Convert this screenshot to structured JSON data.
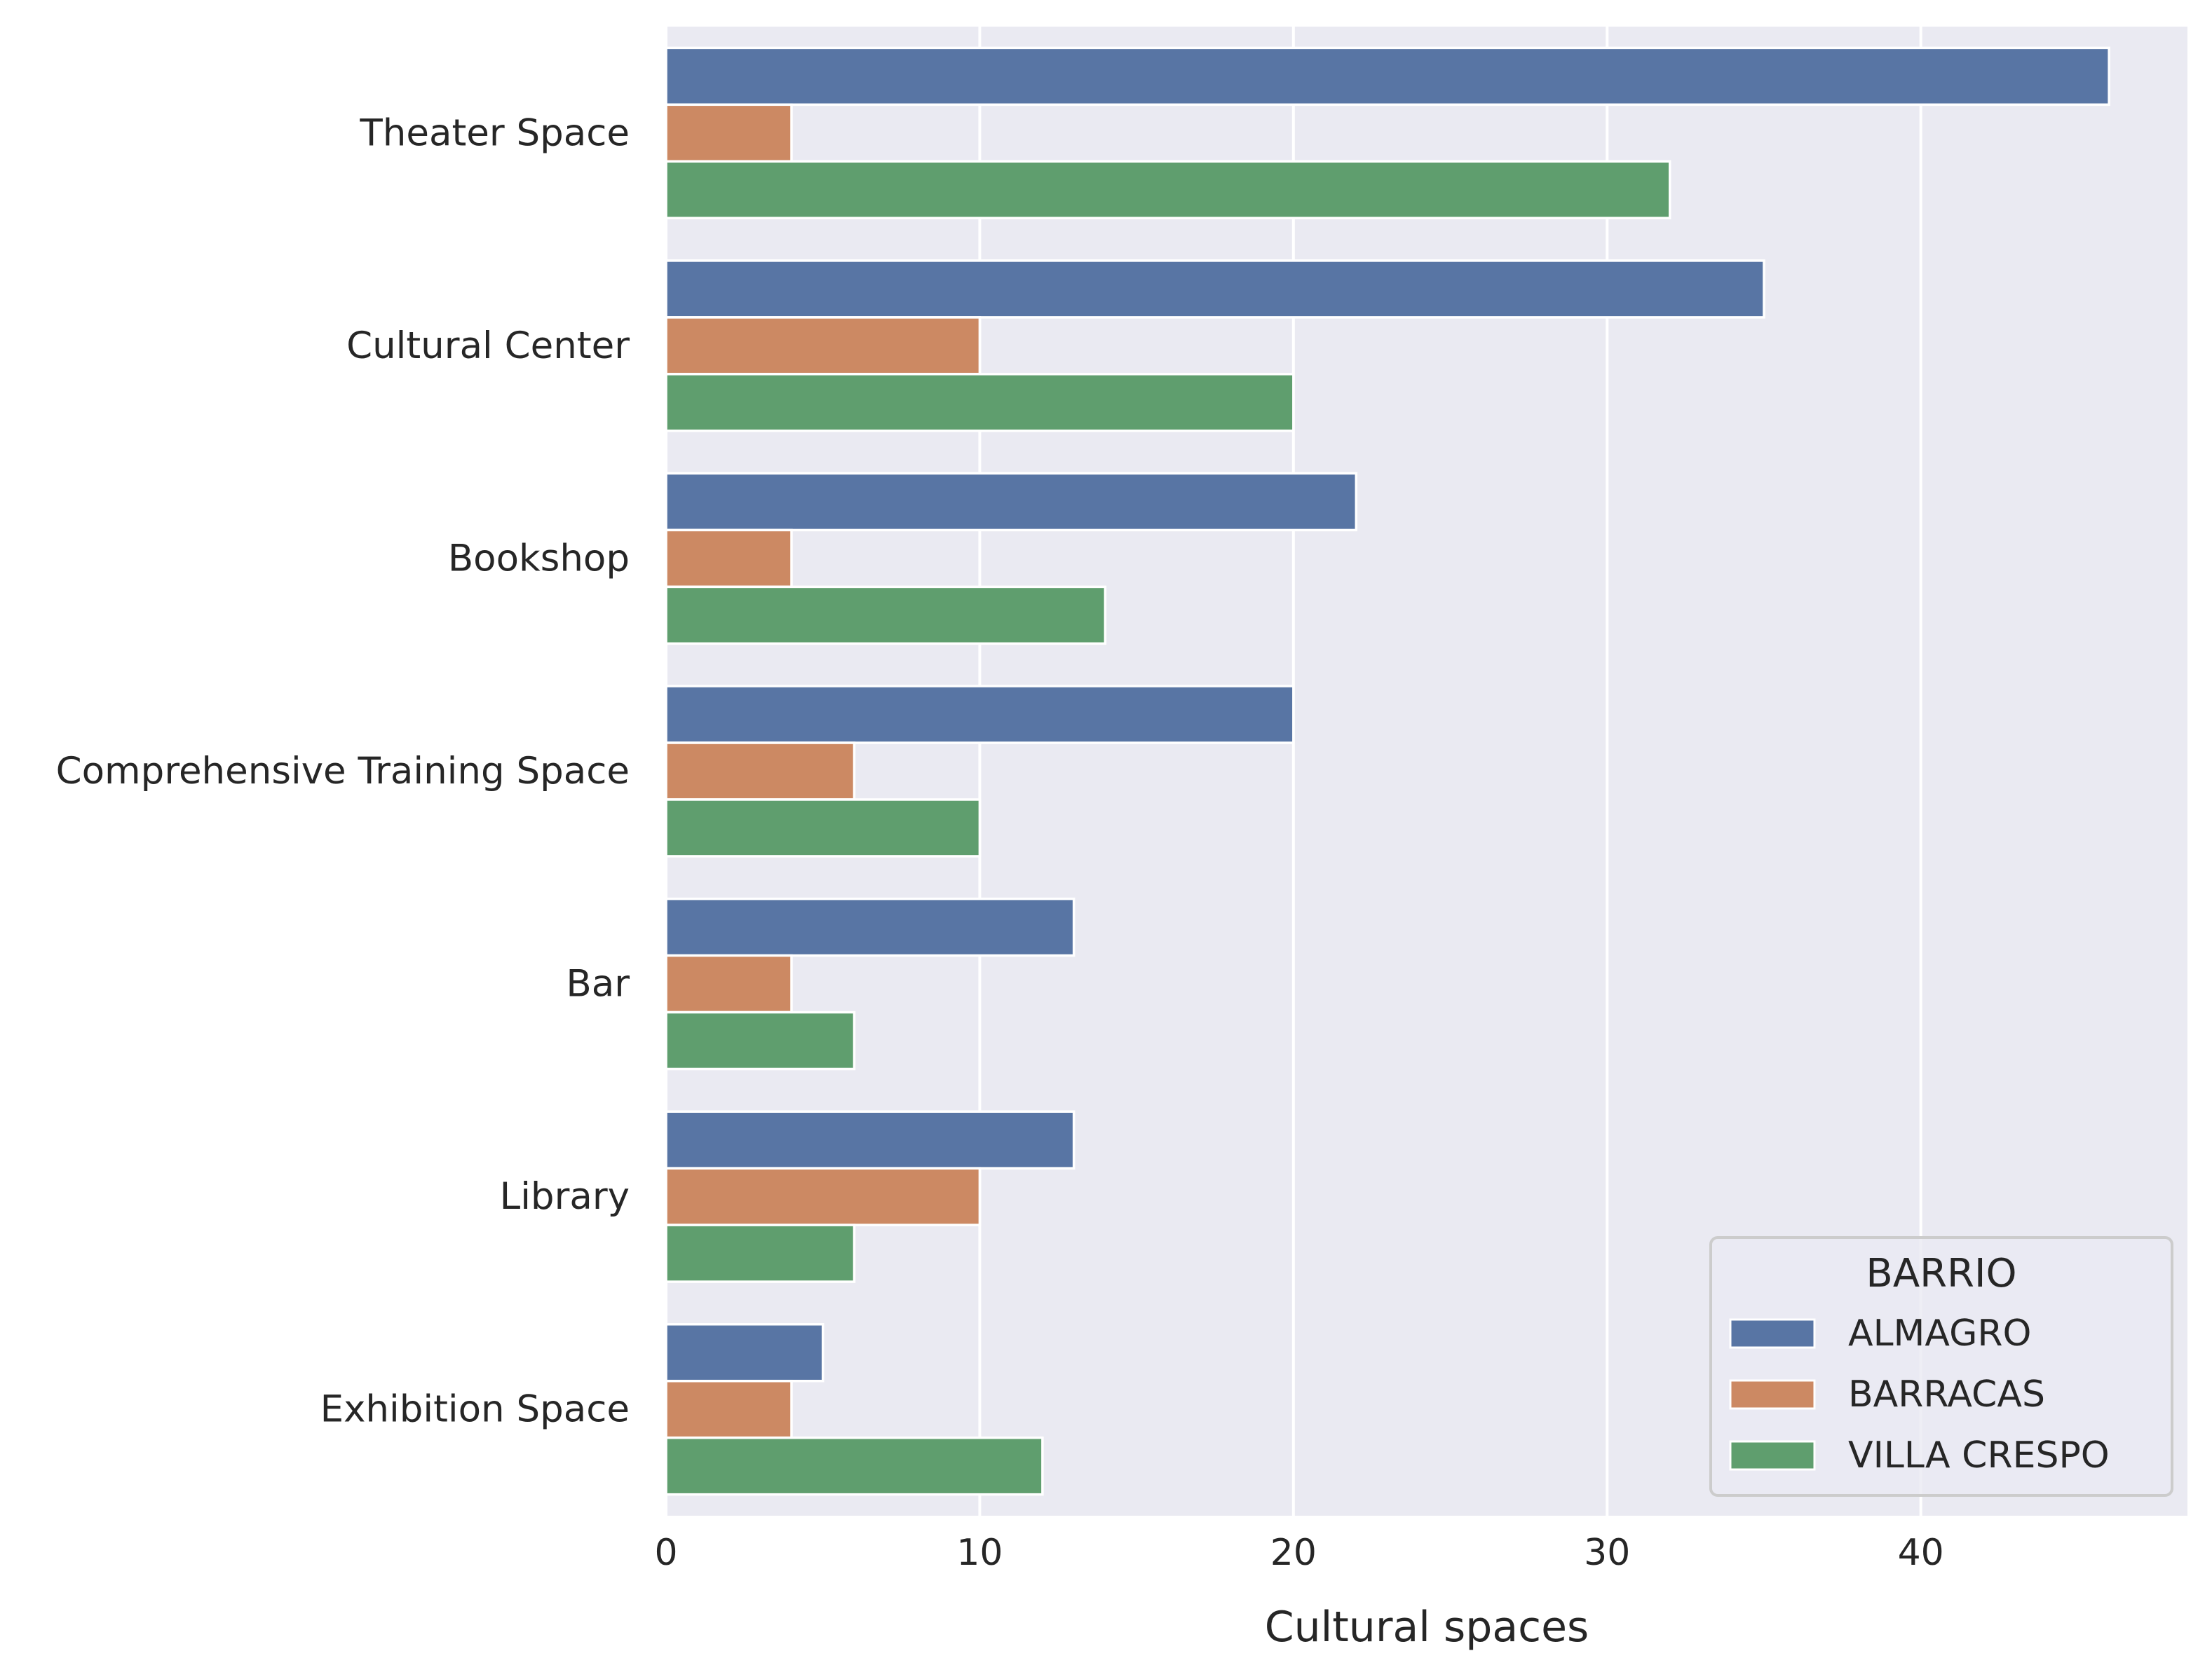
{
  "chart_data": {
    "type": "bar",
    "orientation": "horizontal",
    "xlabel": "Cultural spaces",
    "ylabel": "",
    "xlim": [
      0,
      48.5
    ],
    "x_ticks": [
      0,
      10,
      20,
      30,
      40
    ],
    "grid": true,
    "categories": [
      "Theater Space",
      "Cultural Center",
      "Bookshop",
      "Comprehensive Training Space",
      "Bar",
      "Library",
      "Exhibition Space"
    ],
    "series": [
      {
        "name": "ALMAGRO",
        "color": "#5875a4",
        "values": [
          46,
          35,
          22,
          20,
          13,
          13,
          5
        ]
      },
      {
        "name": "BARRACAS",
        "color": "#cc8963",
        "values": [
          4,
          10,
          4,
          6,
          4,
          10,
          4
        ]
      },
      {
        "name": "VILLA CRESPO",
        "color": "#5f9e6e",
        "values": [
          32,
          20,
          14,
          10,
          6,
          6,
          12
        ]
      }
    ],
    "legend": {
      "title": "BARRIO",
      "position": "lower-right"
    }
  }
}
